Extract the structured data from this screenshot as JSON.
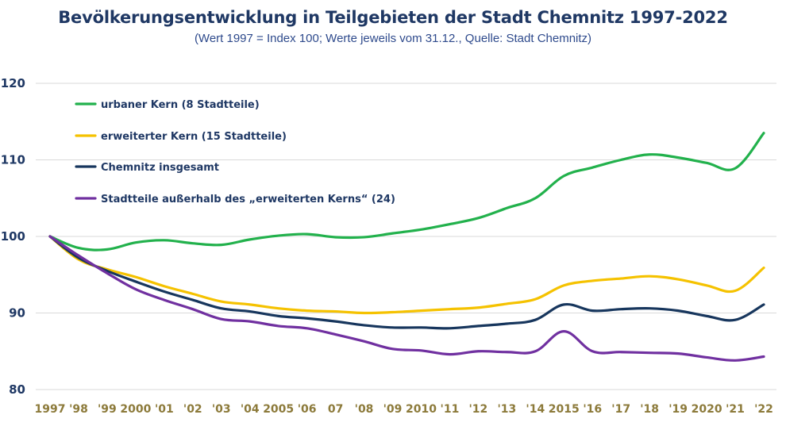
{
  "header": {
    "title": "Bevölkerungsentwicklung in Teilgebieten der Stadt Chemnitz 1997-2022",
    "subtitle": "(Wert 1997 = Index 100; Werte jeweils vom 31.12., Quelle: Stadt Chemnitz)"
  },
  "chart_data": {
    "type": "line",
    "x": [
      "1997",
      "'98",
      "'99",
      "2000",
      "'01",
      "'02",
      "'03",
      "'04",
      "2005",
      "'06",
      "07",
      "'08",
      "'09",
      "2010",
      "'11",
      "'12",
      "'13",
      "'14",
      "2015",
      "'16",
      "'17",
      "'18",
      "'19",
      "2020",
      "'21",
      "'22"
    ],
    "ylim": [
      80,
      120
    ],
    "yticks": [
      80,
      90,
      100,
      110,
      120
    ],
    "grid": true,
    "legend_position": "top-left",
    "series": [
      {
        "name": "urbaner Kern (8 Stadtteile)",
        "color": "#22b14c",
        "values": [
          100,
          98.5,
          98.3,
          99.2,
          99.5,
          99.1,
          98.9,
          99.6,
          100.1,
          100.3,
          99.9,
          99.9,
          100.4,
          100.9,
          101.6,
          102.4,
          103.7,
          105.0,
          107.9,
          109.0,
          110.0,
          110.7,
          110.3,
          109.6,
          108.9,
          113.5
        ]
      },
      {
        "name": "erweiterter Kern (15 Stadtteile)",
        "color": "#f5c200",
        "values": [
          100,
          97.0,
          95.7,
          94.7,
          93.5,
          92.5,
          91.5,
          91.1,
          90.6,
          90.3,
          90.2,
          90.0,
          90.1,
          90.3,
          90.5,
          90.7,
          91.2,
          91.8,
          93.6,
          94.2,
          94.5,
          94.8,
          94.4,
          93.6,
          92.9,
          95.9
        ]
      },
      {
        "name": "Chemnitz insgesamt",
        "color": "#17365d",
        "values": [
          100,
          97.2,
          95.5,
          94.1,
          92.8,
          91.7,
          90.6,
          90.2,
          89.6,
          89.3,
          88.9,
          88.4,
          88.1,
          88.1,
          88.0,
          88.3,
          88.6,
          89.1,
          91.1,
          90.3,
          90.5,
          90.6,
          90.3,
          89.6,
          89.1,
          91.1
        ]
      },
      {
        "name": "Stadtteile außerhalb des „erweiterten Kerns“ (24)",
        "color": "#7030a0",
        "values": [
          100,
          97.5,
          95.2,
          93.1,
          91.7,
          90.5,
          89.2,
          88.9,
          88.3,
          88.0,
          87.2,
          86.3,
          85.3,
          85.1,
          84.6,
          85.0,
          84.9,
          85.0,
          87.6,
          85.0,
          84.9,
          84.8,
          84.7,
          84.2,
          83.8,
          84.3
        ]
      }
    ]
  }
}
